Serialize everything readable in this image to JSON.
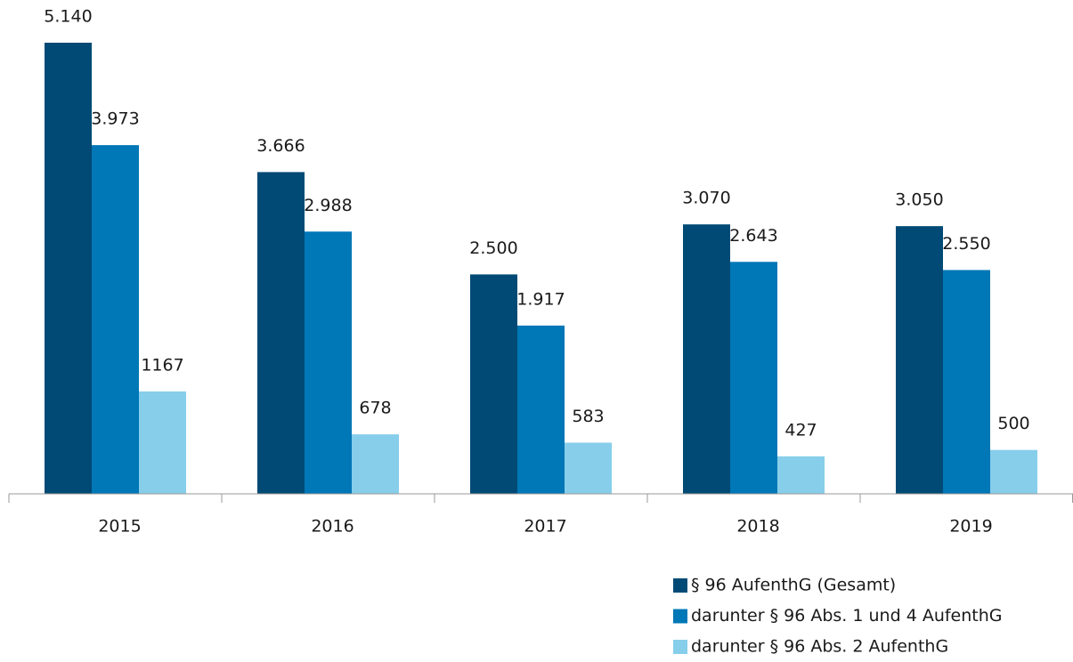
{
  "chart_data": {
    "type": "bar",
    "categories": [
      "2015",
      "2016",
      "2017",
      "2018",
      "2019"
    ],
    "series": [
      {
        "name": "§ 96 AufenthG (Gesamt)",
        "color": "#004a75",
        "values": [
          5140,
          3666,
          2500,
          3070,
          3050
        ],
        "value_labels": [
          "5.140",
          "3.666",
          "2.500",
          "3.070",
          "3.050"
        ]
      },
      {
        "name": "darunter § 96 Abs. 1 und 4 AufenthG",
        "color": "#0077b6",
        "values": [
          3973,
          2988,
          1917,
          2643,
          2550
        ],
        "value_labels": [
          "3.973",
          "2.988",
          "1.917",
          "2.643",
          "2.550"
        ]
      },
      {
        "name": "darunter § 96 Abs. 2 AufenthG",
        "color": "#87ceeb",
        "values": [
          1167,
          678,
          583,
          427,
          500
        ],
        "value_labels": [
          "1167",
          "678",
          "583",
          "427",
          "500"
        ]
      }
    ],
    "legend": "bottom-right"
  }
}
